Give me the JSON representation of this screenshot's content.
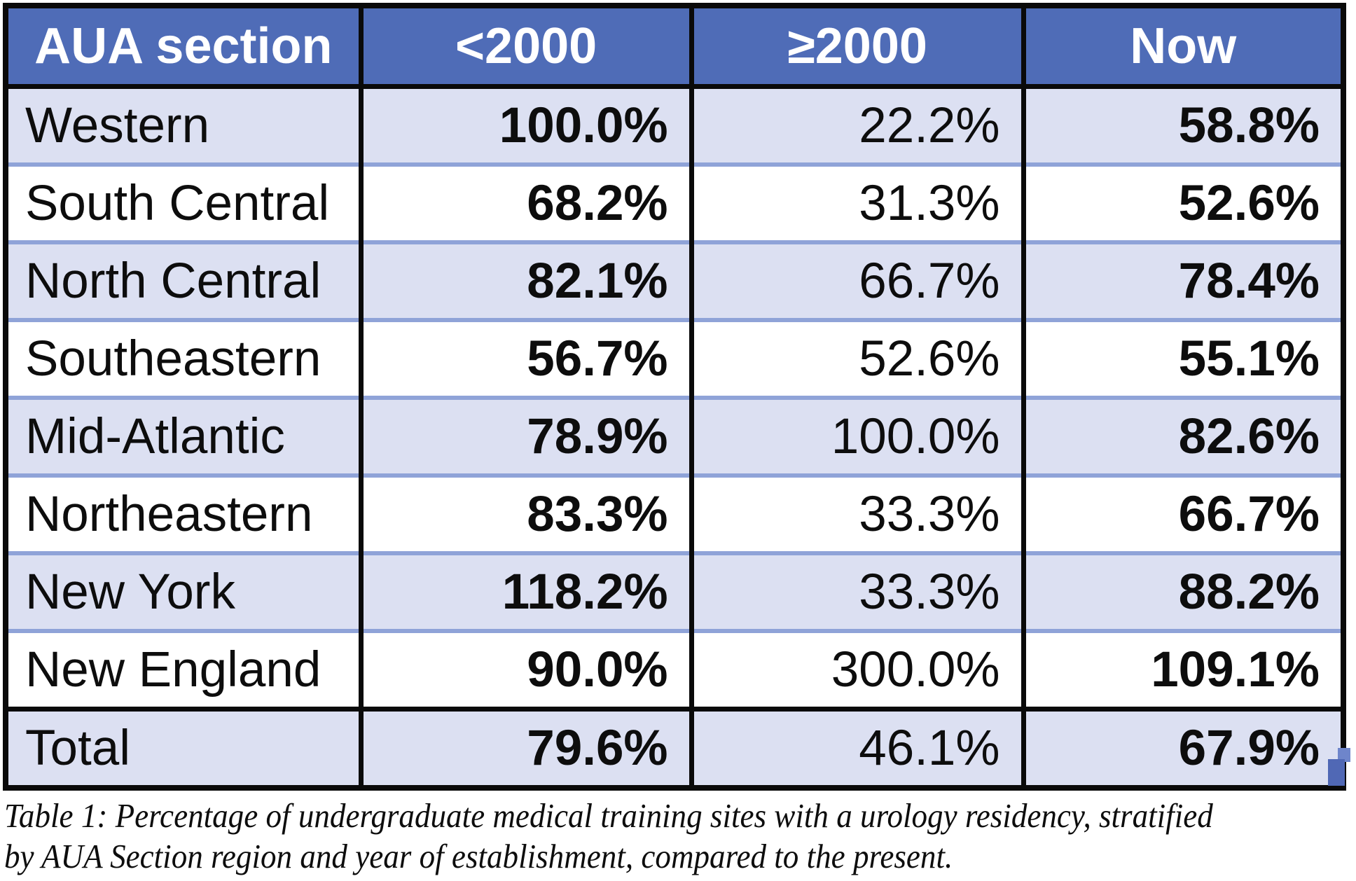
{
  "table": {
    "headers": [
      "AUA section",
      "<2000",
      "≥2000",
      "Now"
    ],
    "rows": [
      {
        "section": "Western",
        "lt2000": "100.0%",
        "gte2000": "22.2%",
        "now": "58.8%"
      },
      {
        "section": "South Central",
        "lt2000": "68.2%",
        "gte2000": "31.3%",
        "now": "52.6%"
      },
      {
        "section": "North Central",
        "lt2000": "82.1%",
        "gte2000": "66.7%",
        "now": "78.4%"
      },
      {
        "section": "Southeastern",
        "lt2000": "56.7%",
        "gte2000": "52.6%",
        "now": "55.1%"
      },
      {
        "section": "Mid-Atlantic",
        "lt2000": "78.9%",
        "gte2000": "100.0%",
        "now": "82.6%"
      },
      {
        "section": "Northeastern",
        "lt2000": "83.3%",
        "gte2000": "33.3%",
        "now": "66.7%"
      },
      {
        "section": "New York",
        "lt2000": "118.2%",
        "gte2000": "33.3%",
        "now": "88.2%"
      },
      {
        "section": "New England",
        "lt2000": "90.0%",
        "gte2000": "300.0%",
        "now": "109.1%"
      },
      {
        "section": "Total",
        "lt2000": "79.6%",
        "gte2000": "46.1%",
        "now": "67.9%"
      }
    ]
  },
  "caption": {
    "line1": "Table 1: Percentage of undergraduate medical training sites with a urology residency, stratified",
    "line2": "by AUA Section region and year of establishment, compared to the present."
  },
  "colors": {
    "header_bg": "#4f6cb7",
    "header_text": "#ffffff",
    "row_alt_bg": "#dce0f2",
    "row_bg": "#ffffff",
    "row_separator": "#8fa3d8",
    "grid_border": "#0a0a0a",
    "body_text": "#0d0d0d",
    "handle_blue_light": "#6e85cb",
    "handle_blue_dark": "#5068b5"
  }
}
